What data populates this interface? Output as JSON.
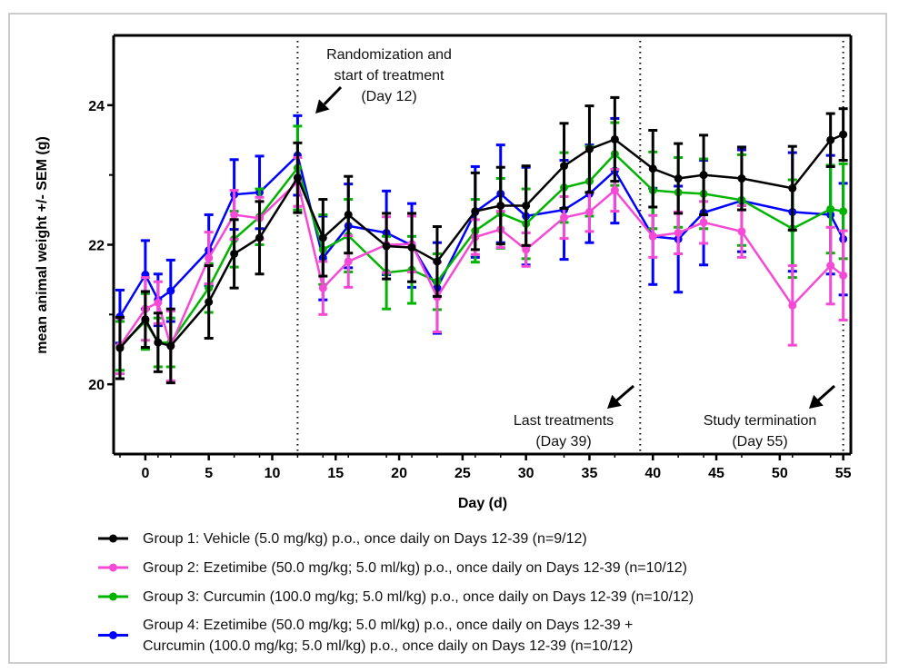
{
  "chart_data": {
    "type": "line",
    "title": "",
    "xlabel": "Day (d)",
    "ylabel": "mean animal weight +/- SEM (g)",
    "xlim": [
      -2.5,
      55.6
    ],
    "ylim": [
      19,
      25
    ],
    "x_ticks": [
      0,
      5,
      10,
      15,
      20,
      25,
      30,
      35,
      40,
      45,
      50,
      55
    ],
    "x_tick_labels": [
      "0",
      "5",
      "10",
      "15",
      "20",
      "25",
      "30",
      "35",
      "40",
      "45",
      "50",
      "55"
    ],
    "y_ticks": [
      20,
      22,
      24
    ],
    "y_tick_labels": [
      "20",
      "22",
      "24"
    ],
    "y_minor_ticks": [
      21,
      23
    ],
    "grid": false,
    "legend_position": "bottom",
    "x": [
      -2,
      0,
      1,
      2,
      5,
      7,
      9,
      12,
      14,
      16,
      19,
      21,
      23,
      26,
      28,
      30,
      33,
      35,
      37,
      40,
      42,
      44,
      47,
      51,
      54,
      55
    ],
    "series": [
      {
        "name": "Group 4:  Ezetimibe (50.0 mg/kg; 5.0 ml/kg) p.o., once daily on Days 12-39 + Curcumin (100.0 mg/kg; 5.0 ml/kg) p.o., once daily on Days 12-39 (n=10/12)",
        "legend_lines": [
          "Group 4:  Ezetimibe (50.0 mg/kg; 5.0 ml/kg) p.o., once daily on Days 12-39 +",
          "Curcumin (100.0 mg/kg; 5.0 ml/kg) p.o., once daily on Days 12-39 (n=10/12)"
        ],
        "color": "#0000ff",
        "values": [
          20.97,
          21.57,
          21.21,
          21.34,
          21.92,
          22.72,
          22.75,
          23.28,
          21.81,
          22.27,
          22.17,
          21.99,
          21.38,
          22.47,
          22.73,
          22.41,
          22.5,
          22.73,
          23.06,
          22.12,
          22.08,
          22.46,
          22.63,
          22.47,
          22.43,
          22.08
        ],
        "sem": [
          0.38,
          0.49,
          0.37,
          0.44,
          0.51,
          0.5,
          0.52,
          0.57,
          0.6,
          0.6,
          0.6,
          0.6,
          0.65,
          0.65,
          0.7,
          0.7,
          0.71,
          0.7,
          0.75,
          0.69,
          0.76,
          0.75,
          0.73,
          0.85,
          0.85,
          0.8
        ]
      },
      {
        "name": "Group 3: Curcumin (100.0 mg/kg; 5.0 ml/kg) p.o., once daily on Days 12-39 (n=10/12)",
        "legend_lines": [
          "Group 3: Curcumin (100.0 mg/kg; 5.0 ml/kg) p.o., once daily on Days 12-39 (n=10/12)"
        ],
        "color": "#00b400",
        "values": [
          20.55,
          20.9,
          20.6,
          20.6,
          21.38,
          22.08,
          22.4,
          23.1,
          21.93,
          22.13,
          21.6,
          21.64,
          21.47,
          22.2,
          22.45,
          22.3,
          22.82,
          22.91,
          23.3,
          22.78,
          22.75,
          22.73,
          22.64,
          22.23,
          22.51,
          22.48
        ],
        "sem": [
          0.35,
          0.4,
          0.35,
          0.35,
          0.35,
          0.4,
          0.4,
          0.6,
          0.5,
          0.52,
          0.52,
          0.48,
          0.4,
          0.45,
          0.5,
          0.5,
          0.5,
          0.5,
          0.45,
          0.55,
          0.5,
          0.5,
          0.65,
          0.7,
          0.63,
          0.68
        ]
      },
      {
        "name": "Group 2: Ezetimibe (50.0 mg/kg; 5.0 ml/kg) p.o., once daily on Days 12-39 (n=10/12)",
        "legend_lines": [
          "Group 2: Ezetimibe (50.0 mg/kg; 5.0 ml/kg) p.o., once daily on Days 12-39 (n=10/12)"
        ],
        "color": "#f54ad6",
        "values": [
          20.55,
          21.08,
          21.17,
          20.55,
          21.81,
          22.43,
          22.38,
          22.9,
          21.38,
          21.76,
          22.0,
          22.01,
          21.25,
          22.11,
          22.22,
          21.93,
          22.39,
          22.47,
          22.78,
          22.12,
          22.17,
          22.32,
          22.19,
          21.13,
          21.7,
          21.56
        ],
        "sem": [
          0.4,
          0.45,
          0.3,
          0.5,
          0.37,
          0.35,
          0.3,
          0.35,
          0.38,
          0.37,
          0.4,
          0.4,
          0.5,
          0.25,
          0.26,
          0.24,
          0.3,
          0.28,
          0.3,
          0.3,
          0.3,
          0.3,
          0.37,
          0.57,
          0.55,
          0.64
        ]
      },
      {
        "name": "Group 1: Vehicle (5.0 mg/kg) p.o., once daily on Days 12-39 (n=9/12)",
        "legend_lines": [
          "Group 1: Vehicle (5.0 mg/kg) p.o., once daily on Days 12-39 (n=9/12)"
        ],
        "color": "#000000",
        "values": [
          20.52,
          20.93,
          20.6,
          20.55,
          21.18,
          21.87,
          22.1,
          22.96,
          22.1,
          22.43,
          21.98,
          21.96,
          21.76,
          22.48,
          22.56,
          22.56,
          23.13,
          23.37,
          23.51,
          23.09,
          22.95,
          23.0,
          22.95,
          22.81,
          23.5,
          23.58
        ],
        "sem": [
          0.44,
          0.4,
          0.42,
          0.53,
          0.52,
          0.49,
          0.52,
          0.5,
          0.55,
          0.55,
          0.47,
          0.49,
          0.5,
          0.55,
          0.55,
          0.57,
          0.61,
          0.62,
          0.6,
          0.55,
          0.5,
          0.57,
          0.45,
          0.6,
          0.38,
          0.37
        ]
      }
    ],
    "legend_order": [
      3,
      2,
      1,
      0
    ],
    "reference_lines": [
      {
        "x": 12,
        "label_lines": [
          "Randomization and",
          "start of treatment",
          "(Day 12)"
        ]
      },
      {
        "x": 39,
        "label_lines": [
          "Last treatments",
          "(Day 39)"
        ]
      },
      {
        "x": 55,
        "label_lines": [
          "Study termination",
          "(Day 55)"
        ]
      }
    ]
  }
}
